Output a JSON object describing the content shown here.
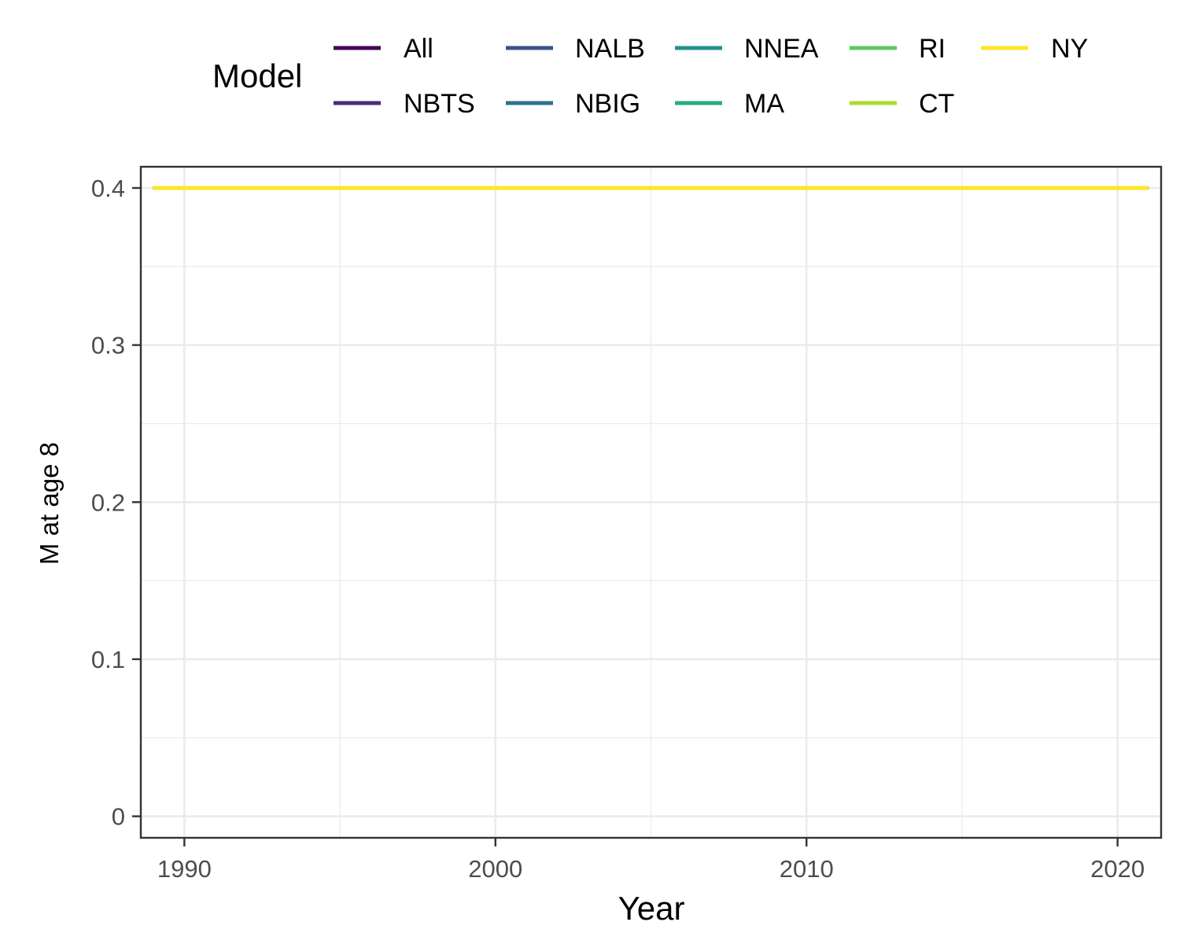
{
  "chart_data": {
    "type": "line",
    "xlabel": "Year",
    "ylabel": "M at age 8",
    "xlim": [
      1988.6,
      2021.4
    ],
    "ylim": [
      -0.0137,
      0.4135
    ],
    "x_ticks": [
      1990,
      2000,
      2010,
      2020
    ],
    "x_tick_labels": [
      "1990",
      "2000",
      "2010",
      "2020"
    ],
    "x_minor_ticks": [
      1995,
      2005,
      2015
    ],
    "y_ticks": [
      0,
      0.1,
      0.2,
      0.3,
      0.4
    ],
    "y_tick_labels": [
      "0",
      "0.1",
      "0.2",
      "0.3",
      "0.4"
    ],
    "y_minor_ticks": [
      0.05,
      0.15,
      0.25,
      0.35
    ],
    "grid": true,
    "legend": {
      "title": "Model",
      "placement": "top",
      "columns": 5,
      "entries": [
        {
          "name": "All",
          "color": "#440154"
        },
        {
          "name": "NBTS",
          "color": "#472D7B"
        },
        {
          "name": "NALB",
          "color": "#3B528B"
        },
        {
          "name": "NBIG",
          "color": "#2C728E"
        },
        {
          "name": "NNEA",
          "color": "#21908C"
        },
        {
          "name": "MA",
          "color": "#27AD81"
        },
        {
          "name": "RI",
          "color": "#5DC863"
        },
        {
          "name": "CT",
          "color": "#AADC32"
        },
        {
          "name": "NY",
          "color": "#FDE725"
        }
      ]
    },
    "series": [
      {
        "name": "All",
        "color": "#440154",
        "x": [
          1989,
          2021
        ],
        "y": [
          0.4,
          0.4
        ]
      },
      {
        "name": "NBTS",
        "color": "#472D7B",
        "x": [
          1989,
          2021
        ],
        "y": [
          0.4,
          0.4
        ]
      },
      {
        "name": "NALB",
        "color": "#3B528B",
        "x": [
          1989,
          2021
        ],
        "y": [
          0.4,
          0.4
        ]
      },
      {
        "name": "NBIG",
        "color": "#2C728E",
        "x": [
          1989,
          2021
        ],
        "y": [
          0.4,
          0.4
        ]
      },
      {
        "name": "NNEA",
        "color": "#21908C",
        "x": [
          1989,
          2021
        ],
        "y": [
          0.4,
          0.4
        ]
      },
      {
        "name": "MA",
        "color": "#27AD81",
        "x": [
          1989,
          2021
        ],
        "y": [
          0.4,
          0.4
        ]
      },
      {
        "name": "RI",
        "color": "#5DC863",
        "x": [
          1989,
          2021
        ],
        "y": [
          0.4,
          0.4
        ]
      },
      {
        "name": "CT",
        "color": "#AADC32",
        "x": [
          1989,
          2021
        ],
        "y": [
          0.4,
          0.4
        ]
      },
      {
        "name": "NY",
        "color": "#FDE725",
        "x": [
          1989,
          2021
        ],
        "y": [
          0.4,
          0.4
        ]
      }
    ],
    "colors": {
      "grid_major": "#EBEBEB",
      "grid_minor": "#EBEBEB",
      "panel_border": "#333333",
      "tick_mark": "#333333",
      "tick_label": "#4D4D4D"
    }
  }
}
